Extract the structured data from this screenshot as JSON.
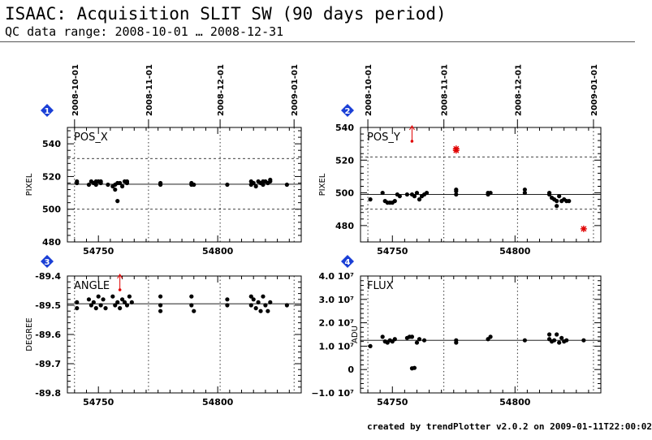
{
  "header": {
    "title": "ISAAC: Acquisition SLIT SW (90 days period)",
    "subtitle": "QC data range: 2008-10-01 … 2008-12-31"
  },
  "footer": "created by trendPlotter v2.0.2 on 2009-01-11T22:00:02",
  "colors": {
    "data": "#000000",
    "outlier": "#e00000",
    "badge": "#1a3fd6"
  },
  "chart_data": [
    {
      "type": "scatter",
      "panel": "1",
      "param": "POS_X",
      "ylabel": "PIXEL",
      "xlim": [
        54737,
        54835
      ],
      "ylim": [
        480,
        550
      ],
      "yticks": [
        480,
        500,
        520,
        540
      ],
      "xticks": [
        54750,
        54800
      ],
      "date_ticks": [
        {
          "mjd": 54740,
          "label": "2008-10-01"
        },
        {
          "mjd": 54771,
          "label": "2008-11-01"
        },
        {
          "mjd": 54801,
          "label": "2008-12-01"
        },
        {
          "mjd": 54832,
          "label": "2009-01-01"
        }
      ],
      "mean": 515.3,
      "limits": [
        500,
        531
      ],
      "points": [
        [
          54741,
          517
        ],
        [
          54741,
          516
        ],
        [
          54746,
          515
        ],
        [
          54747,
          517
        ],
        [
          54748,
          516
        ],
        [
          54749,
          517
        ],
        [
          54749,
          515
        ],
        [
          54750,
          517
        ],
        [
          54751,
          516
        ],
        [
          54751,
          517
        ],
        [
          54754,
          515
        ],
        [
          54756,
          514
        ],
        [
          54757,
          512
        ],
        [
          54757,
          515
        ],
        [
          54758,
          505
        ],
        [
          54758,
          516
        ],
        [
          54759,
          516
        ],
        [
          54760,
          514
        ],
        [
          54761,
          517
        ],
        [
          54762,
          516
        ],
        [
          54762,
          517
        ],
        [
          54776,
          515
        ],
        [
          54776,
          516
        ],
        [
          54789,
          515
        ],
        [
          54789,
          516
        ],
        [
          54790,
          515
        ],
        [
          54804,
          515
        ],
        [
          54814,
          515
        ],
        [
          54814,
          517
        ],
        [
          54815,
          516
        ],
        [
          54816,
          514
        ],
        [
          54817,
          517
        ],
        [
          54818,
          516
        ],
        [
          54819,
          515
        ],
        [
          54819,
          517
        ],
        [
          54820,
          517
        ],
        [
          54821,
          516
        ],
        [
          54822,
          518
        ],
        [
          54822,
          517
        ],
        [
          54829,
          515
        ]
      ],
      "outliers": []
    },
    {
      "type": "scatter",
      "panel": "2",
      "param": "POS_Y",
      "ylabel": "PIXEL",
      "xlim": [
        54737,
        54835
      ],
      "ylim": [
        470,
        540
      ],
      "yticks": [
        480,
        500,
        520,
        540
      ],
      "xticks": [
        54750,
        54800
      ],
      "date_ticks": [
        {
          "mjd": 54740,
          "label": "2008-10-01"
        },
        {
          "mjd": 54771,
          "label": "2008-11-01"
        },
        {
          "mjd": 54801,
          "label": "2008-12-01"
        },
        {
          "mjd": 54832,
          "label": "2009-01-01"
        }
      ],
      "mean": 499,
      "limits": [
        490,
        522
      ],
      "points": [
        [
          54741,
          496
        ],
        [
          54746,
          500
        ],
        [
          54747,
          495
        ],
        [
          54748,
          494
        ],
        [
          54749,
          494
        ],
        [
          54750,
          494
        ],
        [
          54751,
          495
        ],
        [
          54752,
          499
        ],
        [
          54753,
          498
        ],
        [
          54756,
          499
        ],
        [
          54758,
          499
        ],
        [
          54759,
          498
        ],
        [
          54760,
          500
        ],
        [
          54761,
          496
        ],
        [
          54762,
          498
        ],
        [
          54763,
          499
        ],
        [
          54764,
          500
        ],
        [
          54776,
          501
        ],
        [
          54776,
          502
        ],
        [
          54776,
          499
        ],
        [
          54789,
          500
        ],
        [
          54789,
          499
        ],
        [
          54790,
          500
        ],
        [
          54804,
          500
        ],
        [
          54804,
          502
        ],
        [
          54814,
          500
        ],
        [
          54814,
          499
        ],
        [
          54815,
          497
        ],
        [
          54816,
          496
        ],
        [
          54817,
          492
        ],
        [
          54817,
          495
        ],
        [
          54818,
          498
        ],
        [
          54819,
          495
        ],
        [
          54820,
          496
        ],
        [
          54821,
          495
        ],
        [
          54822,
          495
        ]
      ],
      "outliers": [
        [
          54776,
          527
        ],
        [
          54776,
          526
        ],
        [
          54828,
          478
        ]
      ],
      "offscale_marks": [
        54758
      ]
    },
    {
      "type": "scatter",
      "panel": "3",
      "param": "ANGLE",
      "ylabel": "DEGREE",
      "xlim": [
        54737,
        54835
      ],
      "ylim": [
        -89.8,
        -89.4
      ],
      "yticks": [
        -89.8,
        -89.7,
        -89.6,
        -89.5,
        -89.4
      ],
      "xticks": [
        54750,
        54800
      ],
      "mean": -89.495,
      "limits": [],
      "points": [
        [
          54741,
          -89.49
        ],
        [
          54741,
          -89.51
        ],
        [
          54746,
          -89.48
        ],
        [
          54747,
          -89.5
        ],
        [
          54748,
          -89.49
        ],
        [
          54749,
          -89.51
        ],
        [
          54750,
          -89.47
        ],
        [
          54751,
          -89.5
        ],
        [
          54752,
          -89.48
        ],
        [
          54753,
          -89.51
        ],
        [
          54756,
          -89.47
        ],
        [
          54757,
          -89.5
        ],
        [
          54758,
          -89.49
        ],
        [
          54759,
          -89.51
        ],
        [
          54760,
          -89.48
        ],
        [
          54761,
          -89.49
        ],
        [
          54762,
          -89.5
        ],
        [
          54763,
          -89.47
        ],
        [
          54764,
          -89.49
        ],
        [
          54776,
          -89.47
        ],
        [
          54776,
          -89.5
        ],
        [
          54776,
          -89.52
        ],
        [
          54789,
          -89.47
        ],
        [
          54789,
          -89.5
        ],
        [
          54790,
          -89.52
        ],
        [
          54804,
          -89.48
        ],
        [
          54804,
          -89.5
        ],
        [
          54814,
          -89.47
        ],
        [
          54814,
          -89.5
        ],
        [
          54815,
          -89.48
        ],
        [
          54816,
          -89.51
        ],
        [
          54817,
          -89.49
        ],
        [
          54818,
          -89.52
        ],
        [
          54819,
          -89.47
        ],
        [
          54820,
          -89.5
        ],
        [
          54821,
          -89.52
        ],
        [
          54822,
          -89.49
        ],
        [
          54829,
          -89.5
        ]
      ],
      "outliers": [],
      "offscale_marks": [
        54759
      ]
    },
    {
      "type": "scatter",
      "panel": "4",
      "param": "FLUX",
      "ylabel": "ADU",
      "xlim": [
        54737,
        54835
      ],
      "ylim": [
        -10000000,
        40000000
      ],
      "ytick_values": [
        -10000000,
        0,
        10000000,
        20000000,
        30000000,
        40000000
      ],
      "ytick_labels": [
        "−1.0 10⁷",
        "0",
        "1.0 10⁷",
        "2.0 10⁷",
        "3.0 10⁷",
        "4.0 10⁷"
      ],
      "xticks": [
        54750,
        54800
      ],
      "mean": 12500000,
      "limits": [],
      "points": [
        [
          54741,
          10000000
        ],
        [
          54746,
          14000000
        ],
        [
          54747,
          12000000
        ],
        [
          54748,
          11500000
        ],
        [
          54749,
          12500000
        ],
        [
          54750,
          12000000
        ],
        [
          54751,
          13000000
        ],
        [
          54756,
          13500000
        ],
        [
          54757,
          14000000
        ],
        [
          54758,
          500000
        ],
        [
          54758,
          14000000
        ],
        [
          54759,
          700000
        ],
        [
          54760,
          11500000
        ],
        [
          54761,
          13000000
        ],
        [
          54763,
          12500000
        ],
        [
          54776,
          11500000
        ],
        [
          54776,
          12500000
        ],
        [
          54789,
          13000000
        ],
        [
          54790,
          14000000
        ],
        [
          54804,
          12500000
        ],
        [
          54814,
          15000000
        ],
        [
          54814,
          13000000
        ],
        [
          54815,
          12000000
        ],
        [
          54816,
          12500000
        ],
        [
          54817,
          15000000
        ],
        [
          54818,
          11500000
        ],
        [
          54819,
          13500000
        ],
        [
          54820,
          12000000
        ],
        [
          54821,
          12500000
        ],
        [
          54828,
          12500000
        ]
      ],
      "outliers": []
    }
  ]
}
